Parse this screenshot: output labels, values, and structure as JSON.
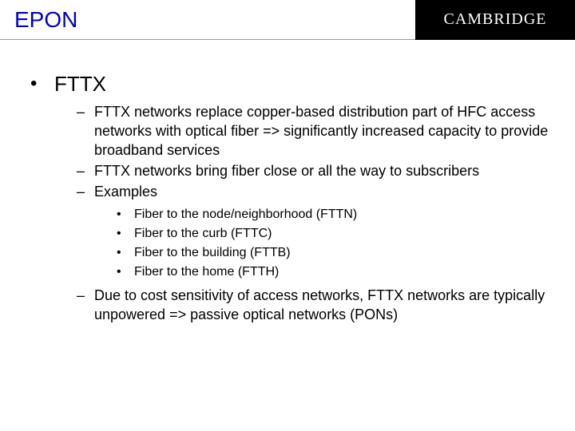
{
  "header": {
    "title": "EPON",
    "logo": "CAMBRIDGE"
  },
  "colors": {
    "title_color": "#0000cc",
    "body_text": "#000000",
    "logo_bg": "#000000",
    "logo_text": "#ffffff",
    "background": "#ffffff",
    "rule": "#999999"
  },
  "typography": {
    "heading_fontsize": 28,
    "lvl1_fontsize": 26,
    "lvl2_fontsize": 18,
    "lvl3_fontsize": 16,
    "font_family": "Comic Sans MS"
  },
  "bullets": {
    "lvl1_marker": "•",
    "lvl2_marker": "–",
    "lvl3_marker": "•"
  },
  "content": {
    "lvl1": "FTTX",
    "lvl2_items": [
      "FTTX networks replace copper-based distribution part of HFC access networks with optical fiber => significantly increased capacity to provide broadband services",
      "FTTX networks bring fiber close or all the way to subscribers",
      "Examples"
    ],
    "lvl3_items": [
      "Fiber to the node/neighborhood (FTTN)",
      "Fiber to the curb (FTTC)",
      "Fiber to the building (FTTB)",
      "Fiber to the home (FTTH)"
    ],
    "lvl2_after": "Due to cost sensitivity of access networks, FTTX networks are typically unpowered => passive optical networks (PONs)"
  }
}
